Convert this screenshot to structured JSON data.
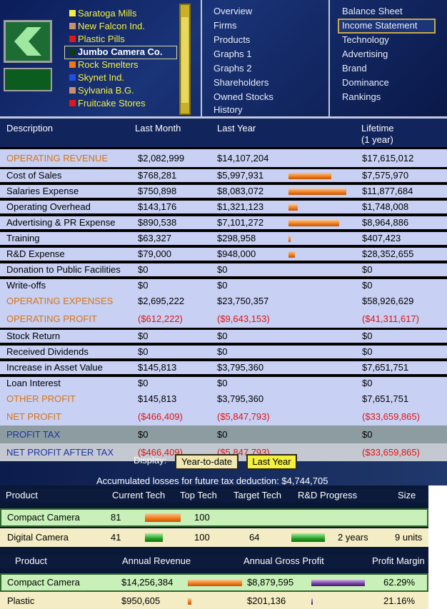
{
  "companies": [
    {
      "name": "Saratoga Mills",
      "color": "#f4f040"
    },
    {
      "name": "New Falcon Ind.",
      "color": "#c8906c"
    },
    {
      "name": "Plastic Pills",
      "color": "#e01818"
    },
    {
      "name": "Jumbo Camera Co.",
      "color": "#0c3c10",
      "selected": true
    },
    {
      "name": "Rock Smelters",
      "color": "#f07818"
    },
    {
      "name": "Skynet Ind.",
      "color": "#2050e0"
    },
    {
      "name": "Sylvania B.G.",
      "color": "#c8906c"
    },
    {
      "name": "Fruitcake Stores",
      "color": "#e01818"
    }
  ],
  "menu_left": [
    {
      "label": "Overview"
    },
    {
      "label": "Firms"
    },
    {
      "label": "Products"
    },
    {
      "label": "Graphs 1"
    },
    {
      "label": "Graphs 2"
    },
    {
      "label": "Shareholders"
    },
    {
      "label": "Owned Stocks"
    },
    {
      "label": "History"
    }
  ],
  "menu_right": [
    {
      "label": "Balance Sheet"
    },
    {
      "label": "Income Statement",
      "selected": true
    },
    {
      "label": "Technology"
    },
    {
      "label": "Advertising"
    },
    {
      "label": "Brand"
    },
    {
      "label": "Dominance"
    },
    {
      "label": "Rankings"
    }
  ],
  "statement": {
    "headers": [
      "Description",
      "Last Month",
      "Last Year",
      "Lifetime"
    ],
    "lifetime_note": "(1 year)",
    "rows": [
      {
        "label": "OPERATING REVENUE",
        "last_month": "$2,082,999",
        "last_year": "$14,107,204",
        "lifetime": "$17,615,012",
        "kind": "section"
      },
      {
        "label": "Cost of Sales",
        "last_month": "$768,281",
        "last_year": "$5,997,931",
        "lifetime": "$7,575,970",
        "kind": "detail",
        "bar": 5997931
      },
      {
        "label": "Salaries Expense",
        "last_month": "$750,898",
        "last_year": "$8,083,072",
        "lifetime": "$11,877,684",
        "kind": "detail",
        "bar": 8083072
      },
      {
        "label": "Operating Overhead",
        "last_month": "$143,176",
        "last_year": "$1,321,123",
        "lifetime": "$1,748,008",
        "kind": "detail",
        "bar": 1321123
      },
      {
        "label": "Advertising & PR Expense",
        "last_month": "$890,538",
        "last_year": "$7,101,272",
        "lifetime": "$8,964,886",
        "kind": "detail",
        "bar": 7101272
      },
      {
        "label": "Training",
        "last_month": "$63,327",
        "last_year": "$298,958",
        "lifetime": "$407,423",
        "kind": "detail",
        "bar": 298958
      },
      {
        "label": "R&D Expense",
        "last_month": "$79,000",
        "last_year": "$948,000",
        "lifetime": "$28,352,655",
        "kind": "detail",
        "bar": 948000
      },
      {
        "label": "Donation to Public Facilities",
        "last_month": "$0",
        "last_year": "$0",
        "lifetime": "$0",
        "kind": "detail"
      },
      {
        "label": "Write-offs",
        "last_month": "$0",
        "last_year": "$0",
        "lifetime": "$0",
        "kind": "detail"
      },
      {
        "label": "OPERATING EXPENSES",
        "last_month": "$2,695,222",
        "last_year": "$23,750,357",
        "lifetime": "$58,926,629",
        "kind": "section"
      },
      {
        "label": "OPERATING PROFIT",
        "last_month": "($612,222)",
        "last_year": "($9,643,153)",
        "lifetime": "($41,311,617)",
        "kind": "section",
        "negative": true
      },
      {
        "label": "Stock Return",
        "last_month": "$0",
        "last_year": "$0",
        "lifetime": "$0",
        "kind": "detail"
      },
      {
        "label": "Received Dividends",
        "last_month": "$0",
        "last_year": "$0",
        "lifetime": "$0",
        "kind": "detail"
      },
      {
        "label": "Increase in Asset Value",
        "last_month": "$145,813",
        "last_year": "$3,795,360",
        "lifetime": "$7,651,751",
        "kind": "detail"
      },
      {
        "label": "Loan Interest",
        "last_month": "$0",
        "last_year": "$0",
        "lifetime": "$0",
        "kind": "detail"
      },
      {
        "label": "OTHER PROFIT",
        "last_month": "$145,813",
        "last_year": "$3,795,360",
        "lifetime": "$7,651,751",
        "kind": "section"
      },
      {
        "label": "NET PROFIT",
        "last_month": "($466,409)",
        "last_year": "($5,847,793)",
        "lifetime": "($33,659,865)",
        "kind": "section",
        "negative": true
      },
      {
        "label": "PROFIT TAX",
        "last_month": "$0",
        "last_year": "$0",
        "lifetime": "$0",
        "kind": "tax"
      },
      {
        "label": "NET PROFIT AFTER TAX",
        "last_month": "($466,409)",
        "last_year": "($5,847,793)",
        "lifetime": "($33,659,865)",
        "kind": "final",
        "negative": true
      }
    ]
  },
  "display": {
    "label": "Display:",
    "options": [
      {
        "label": "Year-to-date"
      },
      {
        "label": "Last Year",
        "selected": true
      }
    ]
  },
  "accumulated_losses": "Accumulated losses for future tax deduction: $4,744,705",
  "tech_table": {
    "headers": [
      "Product",
      "Current Tech",
      "Top Tech",
      "Target Tech",
      "R&D Progress",
      "Size"
    ],
    "rows": [
      {
        "product": "Compact Camera",
        "current_tech": 81,
        "top_tech": 100
      },
      {
        "product": "Digital Camera",
        "current_tech": 41,
        "top_tech": 100,
        "target_tech": 64,
        "rd_progress": 76,
        "rd_time": "2 years",
        "size": "9 units"
      }
    ]
  },
  "revenue_table": {
    "headers": [
      "Product",
      "Annual Revenue",
      "Annual Gross Profit",
      "Profit Margin"
    ],
    "rows": [
      {
        "product": "Compact Camera",
        "revenue": "$14,256,384",
        "revenue_bar": 14256384,
        "gross_profit": "$8,879,595",
        "gross_profit_bar": 8879595,
        "margin": "62.29%"
      },
      {
        "product": "Plastic",
        "revenue": "$950,605",
        "revenue_bar": 950605,
        "gross_profit": "$201,136",
        "gross_profit_bar": 201136,
        "margin": "21.16%"
      }
    ]
  }
}
